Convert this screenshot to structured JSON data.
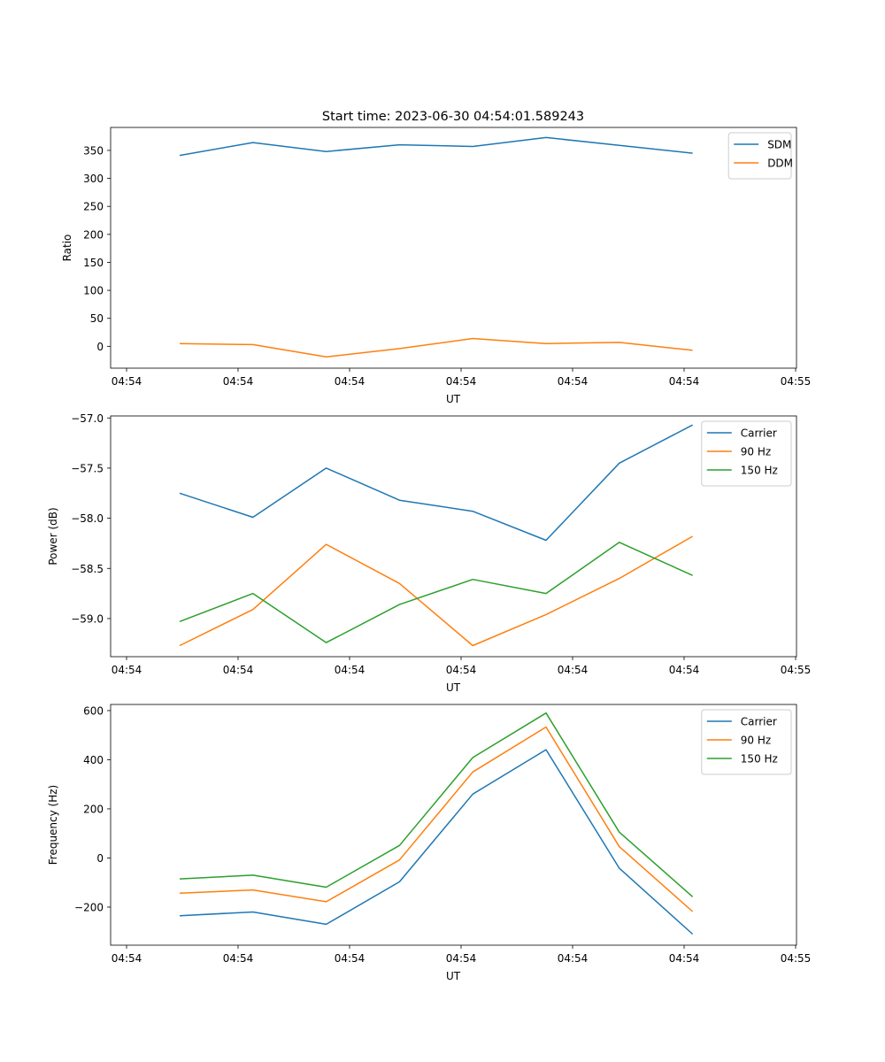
{
  "figure_title": "Start time: 2023-06-30 04:54:01.589243",
  "colors": {
    "blue": "#1f77b4",
    "orange": "#ff7f0e",
    "green": "#2ca02c"
  },
  "chart_data": [
    {
      "type": "line",
      "title": "Start time: 2023-06-30 04:54:01.589243",
      "xlabel": "UT",
      "ylabel": "Ratio",
      "x_tick_labels": [
        "04:54",
        "04:54",
        "04:54",
        "04:54",
        "04:54",
        "04:54",
        "04:54",
        "04:55"
      ],
      "y_ticks": [
        0,
        50,
        100,
        150,
        200,
        250,
        300,
        350
      ],
      "ylim": [
        -39,
        391
      ],
      "legend_position": "top-right",
      "grid": false,
      "series": [
        {
          "name": "SDM",
          "color": "#1f77b4",
          "values": [
            341,
            364,
            348,
            360,
            357,
            373,
            359,
            345
          ]
        },
        {
          "name": "DDM",
          "color": "#ff7f0e",
          "values": [
            5,
            3,
            -19,
            -4,
            14,
            5,
            7,
            -7
          ]
        }
      ]
    },
    {
      "type": "line",
      "xlabel": "UT",
      "ylabel": "Power (dB)",
      "x_tick_labels": [
        "04:54",
        "04:54",
        "04:54",
        "04:54",
        "04:54",
        "04:54",
        "04:54",
        "04:55"
      ],
      "y_ticks": [
        -59.0,
        -58.5,
        -58.0,
        -57.5,
        -57.0
      ],
      "y_tick_labels": [
        "−59.0",
        "−58.5",
        "−58.0",
        "−57.5",
        "−57.0"
      ],
      "ylim": [
        -59.38,
        -56.98
      ],
      "legend_position": "top-right",
      "grid": false,
      "series": [
        {
          "name": "Carrier",
          "color": "#1f77b4",
          "values": [
            -57.75,
            -57.99,
            -57.5,
            -57.82,
            -57.93,
            -58.22,
            -57.45,
            -57.07
          ]
        },
        {
          "name": "90 Hz",
          "color": "#ff7f0e",
          "values": [
            -59.27,
            -58.91,
            -58.26,
            -58.65,
            -59.27,
            -58.96,
            -58.6,
            -58.18
          ]
        },
        {
          "name": "150 Hz",
          "color": "#2ca02c",
          "values": [
            -59.03,
            -58.75,
            -59.24,
            -58.86,
            -58.61,
            -58.75,
            -58.24,
            -58.57
          ]
        }
      ]
    },
    {
      "type": "line",
      "xlabel": "UT",
      "ylabel": "Frequency (Hz)",
      "x_tick_labels": [
        "04:54",
        "04:54",
        "04:54",
        "04:54",
        "04:54",
        "04:54",
        "04:54",
        "04:55"
      ],
      "y_ticks": [
        -200,
        0,
        200,
        400,
        600
      ],
      "y_tick_labels": [
        "−200",
        "0",
        "200",
        "400",
        "600"
      ],
      "ylim": [
        -355,
        625
      ],
      "legend_position": "top-right",
      "grid": false,
      "series": [
        {
          "name": "Carrier",
          "color": "#1f77b4",
          "values": [
            -235,
            -220,
            -270,
            -97,
            260,
            441,
            -42,
            -310
          ]
        },
        {
          "name": "90 Hz",
          "color": "#ff7f0e",
          "values": [
            -143,
            -130,
            -178,
            -8,
            350,
            533,
            46,
            -218
          ]
        },
        {
          "name": "150 Hz",
          "color": "#2ca02c",
          "values": [
            -85,
            -70,
            -119,
            51,
            409,
            590,
            105,
            -158
          ]
        }
      ]
    }
  ]
}
